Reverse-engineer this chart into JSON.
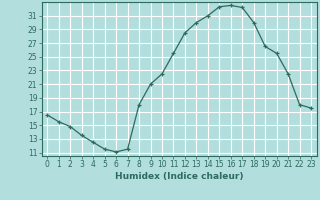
{
  "x": [
    0,
    1,
    2,
    3,
    4,
    5,
    6,
    7,
    8,
    9,
    10,
    11,
    12,
    13,
    14,
    15,
    16,
    17,
    18,
    19,
    20,
    21,
    22,
    23
  ],
  "y": [
    16.5,
    15.5,
    14.8,
    13.5,
    12.5,
    11.5,
    11.1,
    11.5,
    18.0,
    21.0,
    22.5,
    25.5,
    28.5,
    30.0,
    31.0,
    32.3,
    32.5,
    32.2,
    30.0,
    26.5,
    25.5,
    22.5,
    18.0,
    17.5
  ],
  "line_color": "#2d6b5e",
  "marker": "+",
  "marker_color": "#2d6b5e",
  "bg_color": "#b2dede",
  "grid_color": "#ffffff",
  "xlabel": "Humidex (Indice chaleur)",
  "xlim": [
    -0.5,
    23.5
  ],
  "ylim": [
    10.5,
    33
  ],
  "yticks": [
    11,
    13,
    15,
    17,
    19,
    21,
    23,
    25,
    27,
    29,
    31
  ],
  "xticks": [
    0,
    1,
    2,
    3,
    4,
    5,
    6,
    7,
    8,
    9,
    10,
    11,
    12,
    13,
    14,
    15,
    16,
    17,
    18,
    19,
    20,
    21,
    22,
    23
  ],
  "tick_fontsize": 5.5,
  "label_fontsize": 6.5
}
